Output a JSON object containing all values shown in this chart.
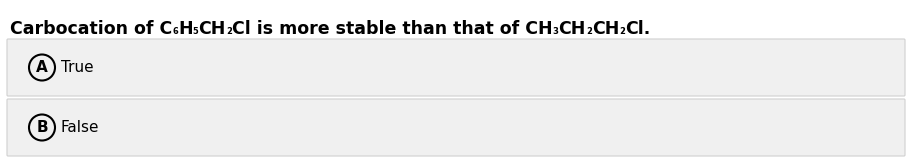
{
  "title": "Carbocation of C₆H₅CH₂Cl is more stable than that of CH₃CH₂CH₂Cl.",
  "options": [
    {
      "label": "A",
      "text": "True"
    },
    {
      "label": "B",
      "text": "False"
    }
  ],
  "bg_color": "#ffffff",
  "option_bg_color": "#f0f0f0",
  "option_border_color": "#d0d0d0",
  "text_color": "#000000",
  "title_fontsize": 12.5,
  "option_fontsize": 11,
  "fig_width": 9.12,
  "fig_height": 1.65
}
